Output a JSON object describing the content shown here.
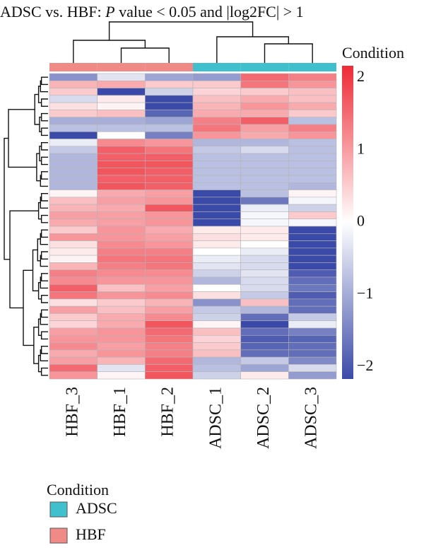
{
  "title": {
    "before_italic": "ADSC vs. HBF: ",
    "italic": "P",
    "after_italic": " value < 0.05 and |log2FC| > 1"
  },
  "colors": {
    "low": "#3b4aa8",
    "mid": "#ffffff",
    "high": "#ee2a35",
    "ADSC": "#40c0cc",
    "HBF": "#f08a86",
    "cell_border": "#b5b5b5"
  },
  "chart_data": {
    "type": "heatmap",
    "columns": [
      "HBF_3",
      "HBF_1",
      "HBF_2",
      "ADSC_1",
      "ADSC_2",
      "ADSC_3"
    ],
    "column_condition": [
      "HBF",
      "HBF",
      "HBF",
      "ADSC",
      "ADSC",
      "ADSC"
    ],
    "color_scale": {
      "min": -2,
      "max": 2,
      "ticks": [
        2,
        1,
        0,
        -1,
        -2
      ],
      "tick_labels": [
        "2",
        "1",
        "0",
        "−1",
        "−2"
      ],
      "title": "Condition"
    },
    "legend": {
      "title": "Condition",
      "entries": [
        "ADSC",
        "HBF"
      ]
    },
    "values": [
      [
        -1.2,
        -0.3,
        -1.0,
        -1.1,
        1.4,
        1.2
      ],
      [
        0.7,
        0.8,
        0.5,
        0.5,
        1.3,
        1.0
      ],
      [
        0.5,
        -2.0,
        -0.5,
        0.4,
        0.5,
        0.6
      ],
      [
        -0.4,
        0.2,
        -2.0,
        0.6,
        0.8,
        0.6
      ],
      [
        0.3,
        0.1,
        -2.0,
        0.7,
        1.0,
        0.8
      ],
      [
        0.5,
        0.6,
        -1.7,
        0.8,
        0.8,
        0.5
      ],
      [
        -0.9,
        -0.9,
        -1.0,
        1.2,
        1.5,
        -0.7
      ],
      [
        -0.7,
        -0.7,
        -0.7,
        1.3,
        0.9,
        1.2
      ],
      [
        -2.0,
        0.0,
        -1.4,
        1.0,
        0.8,
        1.0
      ],
      [
        -0.2,
        1.1,
        1.0,
        -0.8,
        -0.8,
        -0.7
      ],
      [
        -0.6,
        1.5,
        1.3,
        -0.6,
        -0.4,
        -0.7
      ],
      [
        -0.8,
        1.5,
        1.5,
        -0.7,
        -0.7,
        -0.7
      ],
      [
        -0.8,
        1.6,
        1.6,
        -0.7,
        -0.7,
        -0.7
      ],
      [
        -0.8,
        1.6,
        1.5,
        -0.7,
        -0.7,
        -0.7
      ],
      [
        -0.8,
        1.5,
        1.5,
        -0.7,
        -0.7,
        -0.7
      ],
      [
        -0.8,
        1.6,
        1.5,
        -0.7,
        -0.7,
        -0.8
      ],
      [
        0.1,
        0.8,
        0.9,
        -2.0,
        -0.7,
        0.1
      ],
      [
        0.6,
        0.9,
        1.0,
        -2.0,
        -1.5,
        -0.1
      ],
      [
        0.7,
        0.8,
        1.6,
        -2.0,
        -0.2,
        -0.5
      ],
      [
        0.9,
        0.9,
        1.0,
        -2.0,
        -0.1,
        0.5
      ],
      [
        0.8,
        0.9,
        1.0,
        -2.0,
        -0.1,
        -0.1
      ],
      [
        0.5,
        1.0,
        0.8,
        0.2,
        0.2,
        -2.0
      ],
      [
        1.0,
        1.0,
        0.9,
        0.3,
        0.2,
        -2.0
      ],
      [
        0.3,
        1.1,
        1.0,
        0.2,
        0.0,
        -2.0
      ],
      [
        0.2,
        1.2,
        1.2,
        0.0,
        -0.2,
        -2.0
      ],
      [
        0.1,
        1.3,
        1.3,
        -0.2,
        -0.4,
        -2.0
      ],
      [
        0.7,
        1.2,
        1.3,
        -0.3,
        -0.4,
        -2.0
      ],
      [
        1.2,
        1.1,
        1.1,
        -0.5,
        -0.3,
        -1.8
      ],
      [
        1.1,
        1.0,
        1.0,
        -0.8,
        -0.4,
        -1.6
      ],
      [
        1.5,
        0.6,
        0.9,
        0.0,
        -0.4,
        -1.5
      ],
      [
        1.3,
        1.0,
        1.1,
        0.3,
        -0.6,
        -1.8
      ],
      [
        0.3,
        0.5,
        0.7,
        -1.2,
        0.6,
        -1.6
      ],
      [
        0.9,
        0.6,
        0.9,
        -0.6,
        -0.8,
        -1.6
      ],
      [
        0.5,
        0.8,
        1.1,
        -0.5,
        -1.6,
        -0.6
      ],
      [
        0.4,
        0.8,
        1.6,
        0.1,
        -2.0,
        -0.2
      ],
      [
        0.9,
        1.0,
        1.4,
        0.6,
        -1.6,
        -1.4
      ],
      [
        1.0,
        1.0,
        1.3,
        0.4,
        -1.8,
        -1.7
      ],
      [
        1.1,
        0.9,
        1.2,
        0.5,
        -1.7,
        -1.6
      ],
      [
        0.8,
        1.0,
        1.2,
        0.6,
        -1.6,
        -1.6
      ],
      [
        0.9,
        0.7,
        1.4,
        -0.8,
        -0.6,
        -1.3
      ],
      [
        1.4,
        -0.3,
        1.5,
        -0.7,
        -1.0,
        -0.4
      ],
      [
        1.0,
        0.1,
        1.6,
        -0.5,
        0.2,
        -1.1
      ]
    ]
  }
}
